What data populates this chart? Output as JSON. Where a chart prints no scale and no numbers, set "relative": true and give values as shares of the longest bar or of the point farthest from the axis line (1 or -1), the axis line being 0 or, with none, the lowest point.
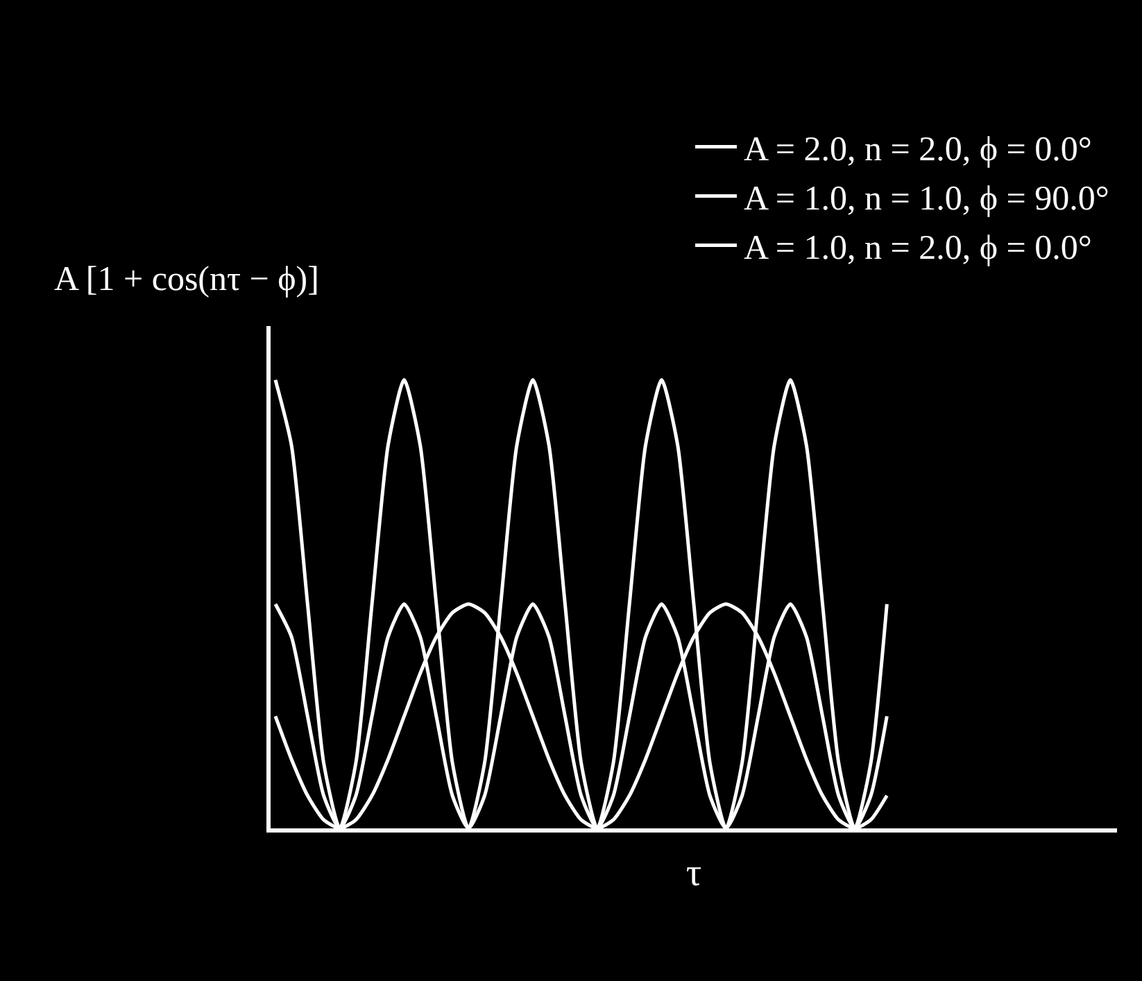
{
  "chart_data": {
    "type": "line",
    "relative": true,
    "xlabel": "τ",
    "ylabel": "A [1 + cos(nτ − ϕ)]",
    "legend": "top right",
    "grid": false,
    "marker": "none",
    "line_style": "solid",
    "tick_labels": false,
    "categories": [
      null,
      null,
      null,
      null,
      null,
      null,
      null,
      null,
      null,
      null,
      null,
      null,
      null,
      null,
      null,
      null,
      null,
      null,
      null,
      null,
      null,
      null,
      null,
      null,
      null,
      null,
      null,
      null,
      null,
      null,
      null,
      null,
      null,
      null,
      null,
      null,
      null,
      null,
      null
    ],
    "series": [
      {
        "name": "A = 2.0, n = 2.0, ϕ = 0.0°",
        "color": "#ffffff",
        "values": [
          1,
          0.854,
          0.5,
          0.146,
          0,
          0.146,
          0.5,
          0.854,
          1,
          0.854,
          0.5,
          0.146,
          0,
          0.146,
          0.5,
          0.854,
          1,
          0.854,
          0.5,
          0.146,
          0,
          0.146,
          0.5,
          0.854,
          1,
          0.854,
          0.5,
          0.146,
          0,
          0.146,
          0.5,
          0.854,
          1,
          0.854,
          0.5,
          0.146,
          0,
          0.146,
          0.5
        ]
      },
      {
        "name": "A = 1.0, n = 1.0, ϕ = 90.0°",
        "color": "#ffffff",
        "values": [
          0.25,
          0.154,
          0.073,
          0.019,
          0,
          0.019,
          0.073,
          0.154,
          0.25,
          0.346,
          0.427,
          0.481,
          0.5,
          0.481,
          0.427,
          0.346,
          0.25,
          0.154,
          0.073,
          0.019,
          0,
          0.019,
          0.073,
          0.154,
          0.25,
          0.346,
          0.427,
          0.481,
          0.5,
          0.481,
          0.427,
          0.346,
          0.25,
          0.154,
          0.073,
          0.019,
          0,
          0.019,
          0.073
        ]
      },
      {
        "name": "A = 1.0, n = 2.0, ϕ = 0.0°",
        "color": "#ffffff",
        "values": [
          0.5,
          0.427,
          0.25,
          0.073,
          0,
          0.073,
          0.25,
          0.427,
          0.5,
          0.427,
          0.25,
          0.073,
          0,
          0.073,
          0.25,
          0.427,
          0.5,
          0.427,
          0.25,
          0.073,
          0,
          0.073,
          0.25,
          0.427,
          0.5,
          0.427,
          0.25,
          0.073,
          0,
          0.073,
          0.25,
          0.427,
          0.5,
          0.427,
          0.25,
          0.073,
          0,
          0.073,
          0.25
        ]
      }
    ]
  }
}
